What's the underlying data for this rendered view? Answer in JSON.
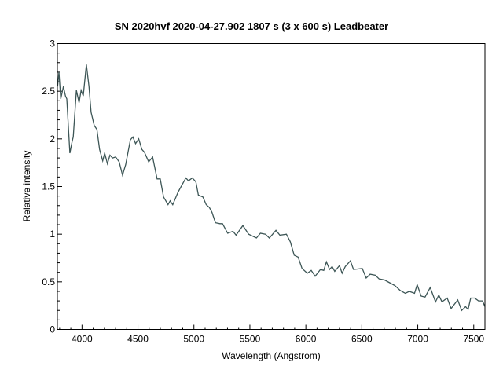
{
  "chart_data": {
    "type": "line",
    "title": "SN 2020hvf   2020-04-27.902   1807 s (3 x 600 s)   Leadbeater",
    "xlabel": "Wavelength (Angstrom)",
    "ylabel": "Relative intensity",
    "xlim": [
      3780,
      7600
    ],
    "ylim": [
      0,
      3
    ],
    "xticks": [
      4000,
      4500,
      5000,
      5500,
      6000,
      6500,
      7000,
      7500
    ],
    "xtick_labels": [
      "4000",
      "4500",
      "5000",
      "5500",
      "6000",
      "6500",
      "7000",
      "7500"
    ],
    "yticks": [
      0,
      0.5,
      1,
      1.5,
      2,
      2.5,
      3
    ],
    "ytick_labels": [
      "0",
      "0.5",
      "1",
      "1.5",
      "2",
      "2.5",
      "3"
    ],
    "grid": false,
    "line_color": "#3d5656",
    "series": [
      {
        "name": "SN 2020hvf",
        "x": [
          3782,
          3794,
          3810,
          3834,
          3852,
          3864,
          3892,
          3911,
          3922,
          3950,
          3974,
          3992,
          4011,
          4039,
          4062,
          4081,
          4109,
          4133,
          4157,
          4185,
          4203,
          4227,
          4250,
          4273,
          4301,
          4332,
          4362,
          4390,
          4432,
          4455,
          4479,
          4507,
          4535,
          4558,
          4596,
          4631,
          4671,
          4699,
          4729,
          4769,
          4788,
          4811,
          4858,
          4881,
          4928,
          4951,
          4986,
          5017,
          5040,
          5080,
          5110,
          5138,
          5161,
          5192,
          5232,
          5255,
          5302,
          5349,
          5377,
          5437,
          5489,
          5559,
          5594,
          5639,
          5674,
          5733,
          5768,
          5826,
          5861,
          5896,
          5931,
          5966,
          6013,
          6048,
          6083,
          6130,
          6160,
          6184,
          6212,
          6235,
          6258,
          6300,
          6324,
          6352,
          6398,
          6426,
          6504,
          6539,
          6574,
          6620,
          6655,
          6702,
          6749,
          6796,
          6843,
          6889,
          6924,
          6971,
          6995,
          7030,
          7065,
          7111,
          7158,
          7188,
          7216,
          7263,
          7298,
          7357,
          7392,
          7427,
          7450,
          7473,
          7508,
          7543,
          7578,
          7600
        ],
        "y": [
          2.55,
          2.7,
          2.42,
          2.55,
          2.45,
          2.42,
          1.85,
          1.97,
          2.02,
          2.51,
          2.38,
          2.51,
          2.45,
          2.78,
          2.55,
          2.28,
          2.14,
          2.1,
          1.89,
          1.77,
          1.85,
          1.74,
          1.83,
          1.8,
          1.81,
          1.76,
          1.62,
          1.73,
          1.99,
          2.02,
          1.95,
          2.0,
          1.89,
          1.86,
          1.76,
          1.81,
          1.58,
          1.58,
          1.39,
          1.31,
          1.35,
          1.31,
          1.44,
          1.49,
          1.59,
          1.56,
          1.59,
          1.55,
          1.41,
          1.39,
          1.31,
          1.28,
          1.23,
          1.12,
          1.11,
          1.11,
          1.01,
          1.03,
          0.99,
          1.09,
          1.0,
          0.96,
          1.01,
          1.0,
          0.96,
          1.04,
          0.99,
          1.0,
          0.92,
          0.78,
          0.76,
          0.64,
          0.59,
          0.62,
          0.56,
          0.63,
          0.62,
          0.71,
          0.63,
          0.66,
          0.61,
          0.67,
          0.59,
          0.66,
          0.72,
          0.63,
          0.64,
          0.54,
          0.58,
          0.57,
          0.53,
          0.52,
          0.49,
          0.46,
          0.41,
          0.38,
          0.4,
          0.38,
          0.47,
          0.35,
          0.34,
          0.44,
          0.29,
          0.36,
          0.29,
          0.33,
          0.22,
          0.31,
          0.2,
          0.24,
          0.21,
          0.33,
          0.33,
          0.3,
          0.3,
          0.24
        ]
      }
    ]
  }
}
